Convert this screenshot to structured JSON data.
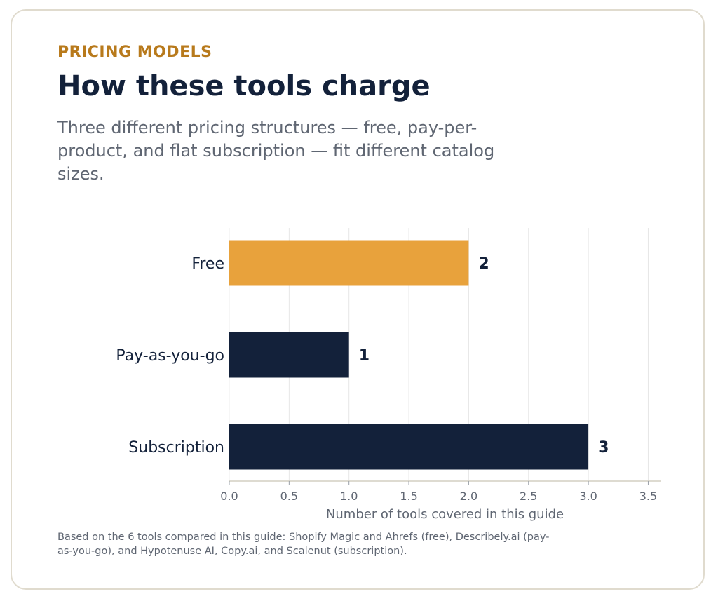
{
  "header": {
    "eyebrow": "PRICING MODELS",
    "title": "How these tools charge",
    "subtitle": "Three different pricing structures — free, pay-per-product, and flat subscription — fit different catalog sizes."
  },
  "chart_data": {
    "type": "bar",
    "orientation": "horizontal",
    "categories": [
      "Free",
      "Pay-as-you-go",
      "Subscription"
    ],
    "values": [
      2,
      1,
      3
    ],
    "value_labels": [
      "2",
      "1",
      "3"
    ],
    "bar_colors": [
      "#e8a23c",
      "#13213a",
      "#13213a"
    ],
    "xlabel": "Number of tools covered in this guide",
    "ylabel": "",
    "xlim": [
      0,
      3.6
    ],
    "xticks": [
      0.0,
      0.5,
      1.0,
      1.5,
      2.0,
      2.5,
      3.0,
      3.5
    ],
    "xtick_labels": [
      "0.0",
      "0.5",
      "1.0",
      "1.5",
      "2.0",
      "2.5",
      "3.0",
      "3.5"
    ],
    "grid": "vertical",
    "legend": "none"
  },
  "footnote": " Based on the 6 tools compared in this guide: Shopify Magic and Ahrefs (free), Describely.ai (pay-as-you-go), and Hypotenuse AI, Copy.ai, and Scalenut (subscription).",
  "colors": {
    "accent": "#e8a23c",
    "eyebrow": "#b87a1c",
    "navy": "#13213a",
    "muted_text": "#5f6672",
    "border": "#e0dbce"
  }
}
